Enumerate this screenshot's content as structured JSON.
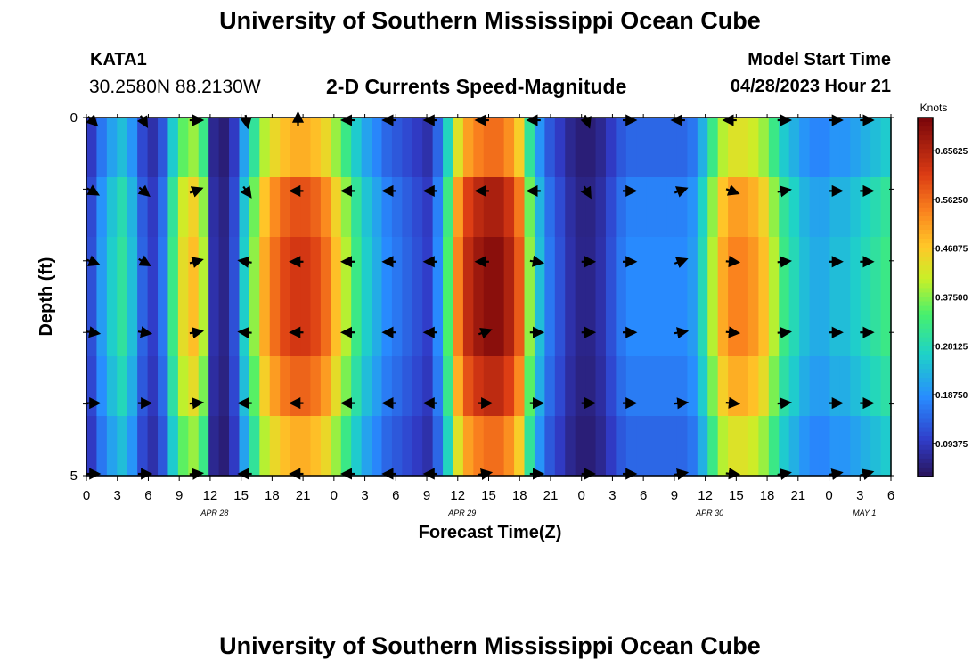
{
  "header": {
    "title": "University of Southern Mississippi Ocean Cube",
    "station": "KATA1",
    "coords": "30.2580N  88.2130W",
    "subtitle": "2-D Currents Speed-Magnitude",
    "model_start_label": "Model Start Time",
    "model_start_value": "04/28/2023 Hour 21"
  },
  "footer": {
    "title": "University of Southern Mississippi Ocean Cube"
  },
  "chart_data": {
    "type": "heatmap",
    "title": "2-D Currents Speed-Magnitude",
    "xlabel": "Forecast Time(Z)",
    "ylabel": "Depth (ft)",
    "xlim": [
      0,
      78
    ],
    "ylim": [
      0,
      5
    ],
    "x_tick_labels": [
      "0",
      "3",
      "6",
      "9",
      "12",
      "15",
      "18",
      "21",
      "0",
      "3",
      "6",
      "9",
      "12",
      "15",
      "18",
      "21",
      "0",
      "3",
      "6",
      "9",
      "12",
      "15",
      "18",
      "21",
      "0",
      "3",
      "6"
    ],
    "y_tick_labels": [
      "0",
      "5"
    ],
    "date_labels": [
      {
        "text": "APR 28",
        "x_hour": 12
      },
      {
        "text": "APR 29",
        "x_hour": 36
      },
      {
        "text": "APR 30",
        "x_hour": 60
      },
      {
        "text": "MAY 1",
        "x_hour": 75
      }
    ],
    "colorbar": {
      "label": "Knots",
      "min": 0.03,
      "max": 0.72,
      "ticks": [
        "0.09375",
        "0.18750",
        "0.28125",
        "0.37500",
        "0.46875",
        "0.56250",
        "0.65625"
      ],
      "tick_values": [
        0.09375,
        0.1875,
        0.28125,
        0.375,
        0.46875,
        0.5625,
        0.65625
      ]
    },
    "rows": 6,
    "hour_step": 1,
    "speed_by_hour": [
      0.12,
      0.2,
      0.26,
      0.3,
      0.24,
      0.14,
      0.1,
      0.16,
      0.32,
      0.44,
      0.48,
      0.4,
      0.08,
      0.06,
      0.12,
      0.26,
      0.38,
      0.5,
      0.56,
      0.6,
      0.62,
      0.62,
      0.6,
      0.56,
      0.48,
      0.4,
      0.32,
      0.26,
      0.22,
      0.18,
      0.16,
      0.14,
      0.12,
      0.1,
      0.18,
      0.34,
      0.54,
      0.64,
      0.68,
      0.7,
      0.7,
      0.66,
      0.58,
      0.38,
      0.24,
      0.16,
      0.12,
      0.08,
      0.06,
      0.06,
      0.08,
      0.12,
      0.16,
      0.18,
      0.18,
      0.18,
      0.18,
      0.18,
      0.18,
      0.2,
      0.28,
      0.4,
      0.5,
      0.54,
      0.54,
      0.52,
      0.48,
      0.4,
      0.32,
      0.28,
      0.24,
      0.22,
      0.22,
      0.24,
      0.24,
      0.26,
      0.28,
      0.3,
      0.32
    ],
    "row_factors": [
      0.8,
      0.95,
      1.0,
      1.0,
      0.92,
      0.8
    ],
    "arrow_hours": [
      0,
      5,
      10,
      15,
      20,
      25,
      29,
      33,
      38,
      43,
      48,
      52,
      57,
      62,
      67,
      72,
      75
    ],
    "arrow_directions_deg": [
      [
        -45,
        -60,
        0,
        -80,
        90,
        180,
        180,
        180,
        180,
        180,
        -70,
        0,
        180,
        180,
        0,
        0,
        0
      ],
      [
        -30,
        -40,
        20,
        -55,
        180,
        180,
        180,
        180,
        180,
        180,
        -60,
        0,
        20,
        -20,
        10,
        0,
        0
      ],
      [
        -20,
        -30,
        15,
        170,
        180,
        180,
        180,
        180,
        180,
        -10,
        0,
        0,
        20,
        -5,
        5,
        0,
        0
      ],
      [
        -10,
        -10,
        10,
        175,
        180,
        180,
        180,
        180,
        20,
        0,
        0,
        0,
        10,
        -5,
        5,
        0,
        0
      ],
      [
        0,
        0,
        5,
        180,
        180,
        180,
        180,
        180,
        0,
        0,
        0,
        0,
        5,
        -5,
        5,
        0,
        0
      ],
      [
        0,
        0,
        5,
        180,
        180,
        180,
        180,
        180,
        10,
        0,
        0,
        0,
        10,
        -5,
        10,
        10,
        15
      ]
    ]
  }
}
